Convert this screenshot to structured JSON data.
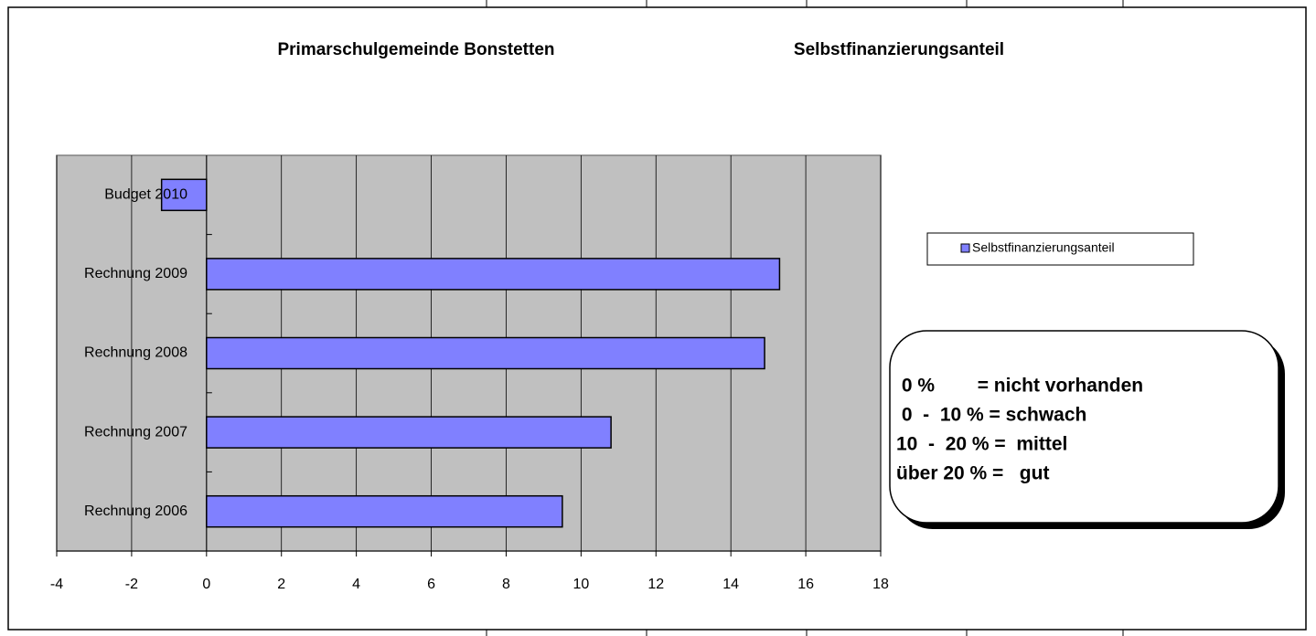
{
  "chart_data": {
    "type": "bar",
    "orientation": "horizontal",
    "title": "Primarschulgemeinde Bonstetten",
    "subtitle": "Selbstfinanzierungsanteil",
    "categories": [
      "Budget 2010",
      "Rechnung 2009",
      "Rechnung 2008",
      "Rechnung 2007",
      "Rechnung 2006"
    ],
    "series": [
      {
        "name": "Selbstfinanzierungsanteil",
        "color": "#8080ff",
        "values": [
          -1.2,
          15.3,
          14.9,
          10.8,
          9.5
        ]
      }
    ],
    "xlim": [
      -4,
      18
    ],
    "xticks": [
      -4,
      -2,
      0,
      2,
      4,
      6,
      8,
      10,
      12,
      14,
      16,
      18
    ],
    "grid": true,
    "plot_background": "#c0c0c0",
    "legend": "right",
    "annotations": [
      " 0 %        = nicht vorhanden",
      " 0  -  10 % = schwach",
      "10  -  20 % =  mittel",
      "über 20 % =   gut"
    ]
  }
}
